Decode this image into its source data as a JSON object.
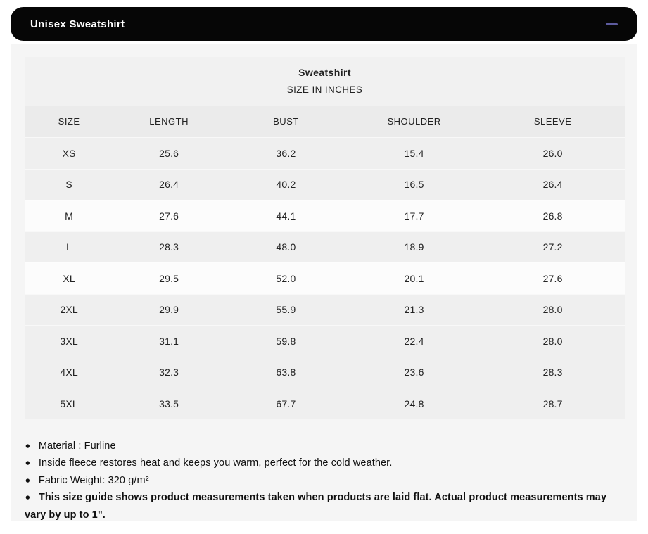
{
  "header": {
    "title": "Unisex Sweatshirt",
    "collapse_icon": "minus"
  },
  "colors": {
    "header_bg": "#060606",
    "accent_minus": "#5d5b9e",
    "panel_bg": "#f5f5f5",
    "row_stripe": "#efefef",
    "row_highlight": "#fcfcfc"
  },
  "table": {
    "title": "Sweatshirt",
    "subtitle": "SIZE IN INCHES",
    "columns": [
      "SIZE",
      "LENGTH",
      "BUST",
      "SHOULDER",
      "SLEEVE"
    ],
    "rows": [
      {
        "size": "XS",
        "values": [
          "25.6",
          "36.2",
          "15.4",
          "26.0"
        ]
      },
      {
        "size": "S",
        "values": [
          "26.4",
          "40.2",
          "16.5",
          "26.4"
        ]
      },
      {
        "size": "M",
        "values": [
          "27.6",
          "44.1",
          "17.7",
          "26.8"
        ]
      },
      {
        "size": "L",
        "values": [
          "28.3",
          "48.0",
          "18.9",
          "27.2"
        ]
      },
      {
        "size": "XL",
        "values": [
          "29.5",
          "52.0",
          "20.1",
          "27.6"
        ]
      },
      {
        "size": "2XL",
        "values": [
          "29.9",
          "55.9",
          "21.3",
          "28.0"
        ]
      },
      {
        "size": "3XL",
        "values": [
          "31.1",
          "59.8",
          "22.4",
          "28.0"
        ]
      },
      {
        "size": "4XL",
        "values": [
          "32.3",
          "63.8",
          "23.6",
          "28.3"
        ]
      },
      {
        "size": "5XL",
        "values": [
          "33.5",
          "67.7",
          "24.8",
          "28.7"
        ]
      }
    ]
  },
  "notes_bullet": "●",
  "notes": [
    {
      "text": "Material : Furline"
    },
    {
      "text": "Inside fleece restores heat and keeps you warm, perfect for the cold weather."
    },
    {
      "text": "Fabric Weight: 320 g/m²"
    },
    {
      "text": "This size guide shows product measurements taken when products are laid flat. Actual product measurements may vary by up to 1\"."
    }
  ]
}
